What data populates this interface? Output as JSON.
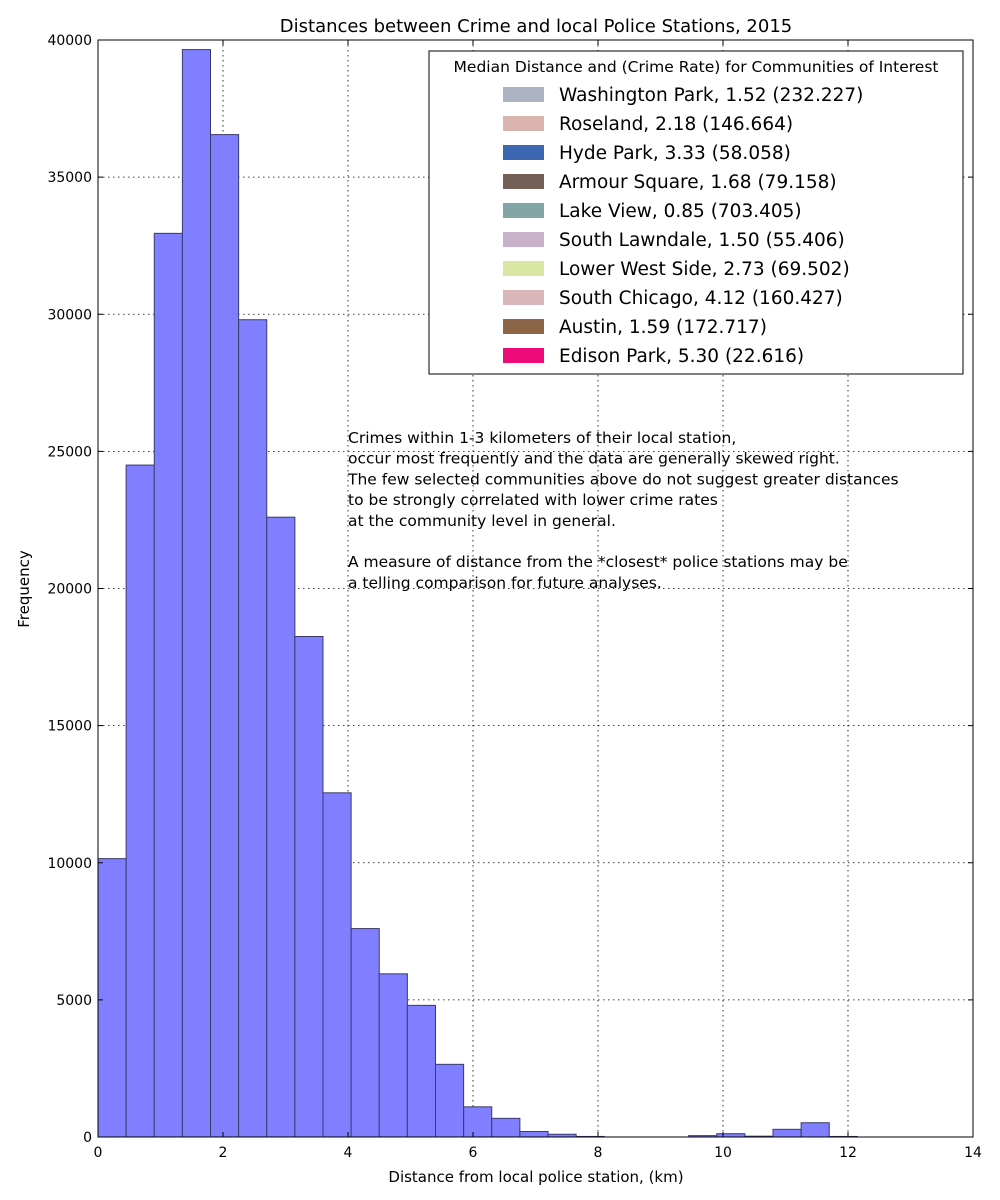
{
  "chart_data": {
    "type": "bar",
    "title": "Distances between Crime and local Police Stations, 2015",
    "xlabel": "Distance from local police station, (km)",
    "ylabel": "Frequency",
    "xlim": [
      0,
      14
    ],
    "ylim": [
      0,
      40000
    ],
    "x_ticks": [
      "0",
      "2",
      "4",
      "6",
      "8",
      "10",
      "12",
      "14"
    ],
    "y_ticks": [
      "0",
      "5000",
      "10000",
      "15000",
      "20000",
      "25000",
      "30000",
      "35000",
      "40000"
    ],
    "grid": true,
    "bar_color": "#7f7fff",
    "bin_width": 0.45,
    "bins": [
      {
        "x": 0.0,
        "value": 10150
      },
      {
        "x": 0.45,
        "value": 24500
      },
      {
        "x": 0.9,
        "value": 32950
      },
      {
        "x": 1.35,
        "value": 39650
      },
      {
        "x": 1.8,
        "value": 36550
      },
      {
        "x": 2.25,
        "value": 29800
      },
      {
        "x": 2.7,
        "value": 22600
      },
      {
        "x": 3.15,
        "value": 18250
      },
      {
        "x": 3.6,
        "value": 12550
      },
      {
        "x": 4.05,
        "value": 7600
      },
      {
        "x": 4.5,
        "value": 5950
      },
      {
        "x": 4.95,
        "value": 4800
      },
      {
        "x": 5.4,
        "value": 2650
      },
      {
        "x": 5.85,
        "value": 1100
      },
      {
        "x": 6.3,
        "value": 680
      },
      {
        "x": 6.75,
        "value": 200
      },
      {
        "x": 7.2,
        "value": 100
      },
      {
        "x": 7.65,
        "value": 20
      },
      {
        "x": 9.45,
        "value": 50
      },
      {
        "x": 9.9,
        "value": 120
      },
      {
        "x": 10.35,
        "value": 30
      },
      {
        "x": 10.8,
        "value": 280
      },
      {
        "x": 11.25,
        "value": 520
      },
      {
        "x": 11.7,
        "value": 20
      }
    ],
    "legend": {
      "title": "Median Distance and (Crime Rate) for Communities of Interest",
      "placement": "top-right",
      "entries": [
        {
          "label": "Washington Park, 1.52 (232.227)",
          "color": "#adb3c3"
        },
        {
          "label": "Roseland, 2.18 (146.664)",
          "color": "#dbb4ad"
        },
        {
          "label": "Hyde Park, 3.33 (58.058)",
          "color": "#3b68b0"
        },
        {
          "label": "Armour Square, 1.68 (79.158)",
          "color": "#735f55"
        },
        {
          "label": "Lake View, 0.85 (703.405)",
          "color": "#84a5a6"
        },
        {
          "label": "South Lawndale, 1.50 (55.406)",
          "color": "#c9b1c9"
        },
        {
          "label": "Lower West Side, 2.73 (69.502)",
          "color": "#d9e5a2"
        },
        {
          "label": "South Chicago, 4.12 (160.427)",
          "color": "#d9b6ba"
        },
        {
          "label": "Austin, 1.59 (172.717)",
          "color": "#8c6446"
        },
        {
          "label": "Edison Park, 5.30 (22.616)",
          "color": "#ef0a79"
        }
      ]
    },
    "annotation": [
      "Crimes within 1-3 kilometers of their local station,",
      "occur most frequently and the data are generally skewed right.",
      "The few selected communities above do not suggest greater distances",
      "to be strongly correlated with lower crime rates",
      "at the community level in general.",
      "",
      "A measure of distance from the *closest* police stations may be",
      "a telling comparison for future analyses."
    ]
  }
}
